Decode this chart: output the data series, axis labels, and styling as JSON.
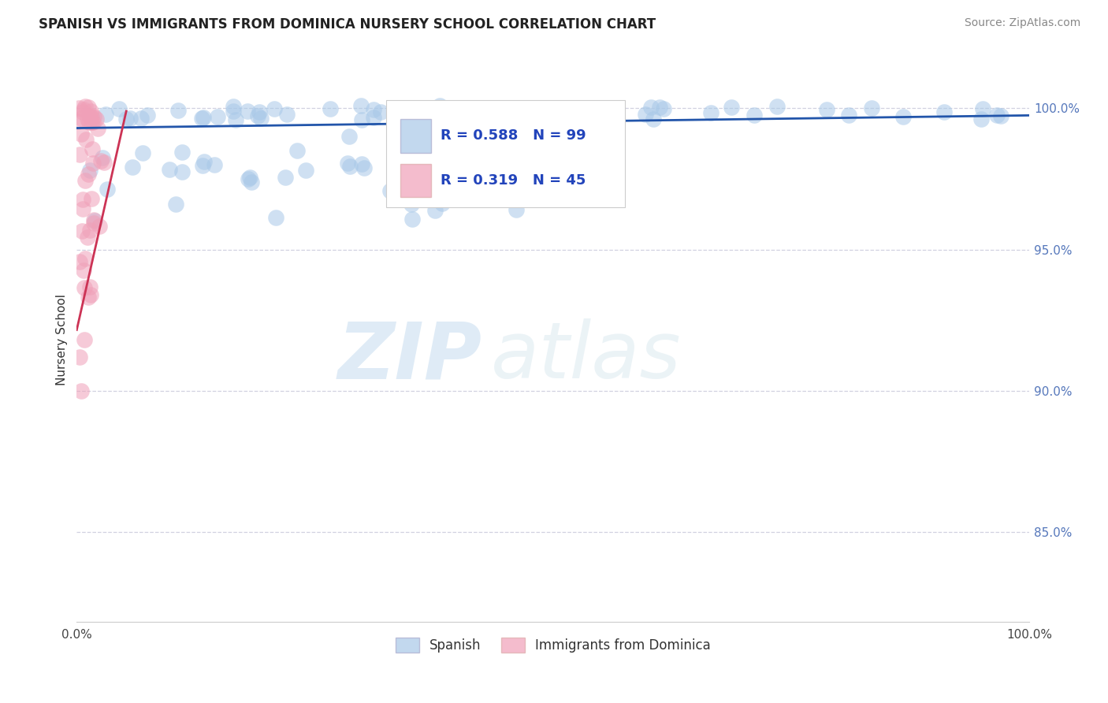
{
  "title": "SPANISH VS IMMIGRANTS FROM DOMINICA NURSERY SCHOOL CORRELATION CHART",
  "source_text": "Source: ZipAtlas.com",
  "ylabel": "Nursery School",
  "blue_R": 0.588,
  "blue_N": 99,
  "pink_R": 0.319,
  "pink_N": 45,
  "blue_color": "#a8c8e8",
  "pink_color": "#f0a0b8",
  "blue_line_color": "#2255aa",
  "pink_line_color": "#cc3355",
  "legend_label_blue": "Spanish",
  "legend_label_pink": "Immigrants from Dominica",
  "watermark_zip": "ZIP",
  "watermark_atlas": "atlas",
  "xlim": [
    0.0,
    1.0
  ],
  "ylim": [
    0.818,
    1.018
  ],
  "ytick_vals": [
    0.85,
    0.9,
    0.95,
    1.0
  ],
  "ytick_labels": [
    "85.0%",
    "90.0%",
    "95.0%",
    "100.0%"
  ],
  "grid_color": "#ccccdd",
  "title_fontsize": 12,
  "source_fontsize": 10
}
